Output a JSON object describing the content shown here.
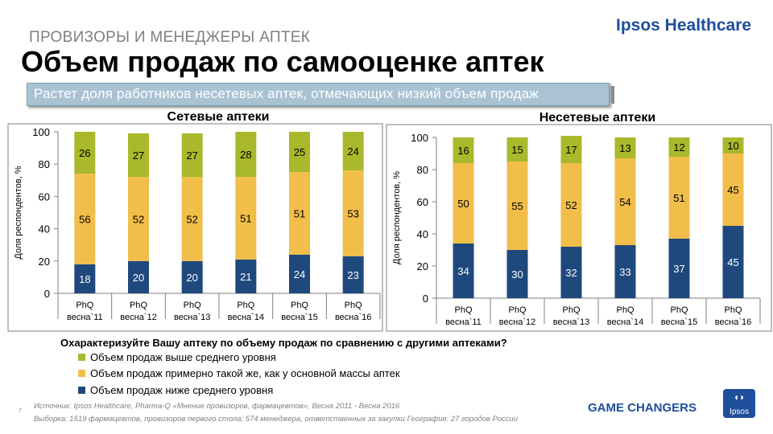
{
  "header": {
    "subtitle": "ПРОВИЗОРЫ И МЕНЕДЖЕРЫ АПТЕК",
    "title": "Объем продаж по самооценке аптек",
    "brand": "Ipsos Healthcare",
    "callout": "Растет доля работников несетевых аптек, отмечающих низкий объем продаж"
  },
  "colors": {
    "low": "#1f497d",
    "same": "#f2be4a",
    "high": "#a9b92b",
    "label_dark": "#000000",
    "label_light": "#ffffff"
  },
  "chart_data": [
    {
      "type": "bar",
      "stacked": true,
      "title": "Сетевые аптеки",
      "ylabel": "Доля респондентов, %",
      "ylim": [
        0,
        100
      ],
      "yticks": [
        0,
        20,
        40,
        60,
        80,
        100
      ],
      "categories": [
        {
          "line1": "PhQ",
          "line2": "весна`11"
        },
        {
          "line1": "PhQ",
          "line2": "весна`12"
        },
        {
          "line1": "PhQ",
          "line2": "весна`13"
        },
        {
          "line1": "PhQ",
          "line2": "весна`14"
        },
        {
          "line1": "PhQ",
          "line2": "весна`15"
        },
        {
          "line1": "PhQ",
          "line2": "весна`16"
        }
      ],
      "series": [
        {
          "name": "Объем продаж ниже среднего уровня",
          "key": "low",
          "values": [
            18,
            20,
            20,
            21,
            24,
            23
          ]
        },
        {
          "name": "Объем продаж примерно такой же, как у основной массы аптек",
          "key": "same",
          "values": [
            56,
            52,
            52,
            51,
            51,
            53
          ]
        },
        {
          "name": "Объем продаж выше среднего уровня",
          "key": "high",
          "values": [
            26,
            27,
            27,
            28,
            25,
            24
          ]
        }
      ]
    },
    {
      "type": "bar",
      "stacked": true,
      "title": "Несетевые аптеки",
      "ylabel": "Доля респондентов, %",
      "ylim": [
        0,
        100
      ],
      "yticks": [
        0,
        20,
        40,
        60,
        80,
        100
      ],
      "categories": [
        {
          "line1": "PhQ",
          "line2": "весна`11"
        },
        {
          "line1": "PhQ",
          "line2": "весна`12"
        },
        {
          "line1": "PhQ",
          "line2": "весна`13"
        },
        {
          "line1": "PhQ",
          "line2": "весна`14"
        },
        {
          "line1": "PhQ",
          "line2": "весна`15"
        },
        {
          "line1": "PhQ",
          "line2": "весна`16"
        }
      ],
      "series": [
        {
          "name": "Объем продаж ниже среднего уровня",
          "key": "low",
          "values": [
            34,
            30,
            32,
            33,
            37,
            45
          ]
        },
        {
          "name": "Объем продаж примерно такой же, как у основной массы аптек",
          "key": "same",
          "values": [
            50,
            55,
            52,
            54,
            51,
            45
          ]
        },
        {
          "name": "Объем продаж выше среднего уровня",
          "key": "high",
          "values": [
            16,
            15,
            17,
            13,
            12,
            10
          ]
        }
      ]
    }
  ],
  "question": "Охарактеризуйте Вашу аптеку по объему продаж по сравнению с другими аптеками?",
  "legend": [
    {
      "key": "high",
      "label": "Объем продаж выше среднего уровня"
    },
    {
      "key": "same",
      "label": "Объем продаж примерно такой же, как у основной массы аптек"
    },
    {
      "key": "low",
      "label": "Объем продаж ниже среднего уровня"
    }
  ],
  "footer": {
    "page_number": "7",
    "source": "Источник: Ipsos Healthcare, Pharma-Q «Мнение провизоров, фармацевтов», Весна 2011 - Весна 2016",
    "sample": "Выборка:  1519 фармацевтов, провизоров первого стола; 574 менеджера, ответственных за закупки  География:  27 городов России",
    "tagline": "GAME CHANGERS",
    "logo_text": "Ipsos"
  }
}
